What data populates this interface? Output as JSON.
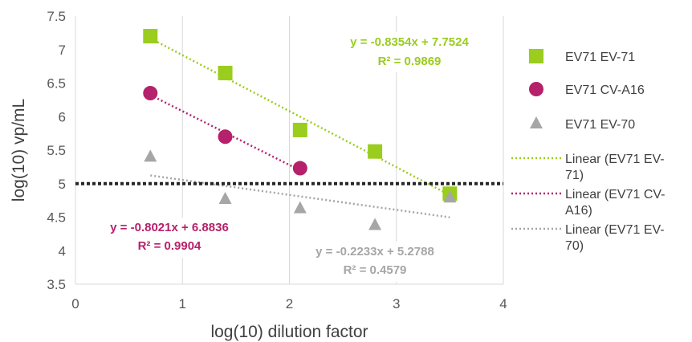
{
  "chart_data": {
    "type": "scatter",
    "title": "",
    "xlabel": "log(10) dilution factor",
    "ylabel": "log(10) vp/mL",
    "xlim": [
      0,
      4
    ],
    "ylim": [
      3.5,
      7.5
    ],
    "xticks": [
      "0",
      "1",
      "2",
      "3",
      "4"
    ],
    "yticks": [
      "3.5",
      "4",
      "4.5",
      "5",
      "5.5",
      "6",
      "6.5",
      "7",
      "7.5"
    ],
    "grid": "vertical",
    "legend_position": "right",
    "reference_line": {
      "y": 5,
      "style": "dotted",
      "color": "#262626"
    },
    "series": [
      {
        "name": "EV71 EV-71",
        "marker": "square",
        "color": "#9ACD1E",
        "x": [
          0.7,
          1.4,
          2.1,
          2.8,
          3.5
        ],
        "y": [
          7.2,
          6.65,
          5.8,
          5.48,
          4.85
        ],
        "trendline": {
          "slope": -0.8354,
          "intercept": 7.7524,
          "x_range": [
            0.7,
            3.5
          ],
          "legend_label": "Linear (EV71 EV-71)",
          "equation": "y = -0.8354x + 7.7524",
          "r2": "R² = 0.9869"
        }
      },
      {
        "name": "EV71 CV-A16",
        "marker": "circle",
        "color": "#B5216A",
        "x": [
          0.7,
          1.4,
          2.1
        ],
        "y": [
          6.35,
          5.7,
          5.23
        ],
        "trendline": {
          "slope": -0.8021,
          "intercept": 6.8836,
          "x_range": [
            0.7,
            2.1
          ],
          "legend_label": "Linear (EV71 CV-A16)",
          "equation": "y = -0.8021x + 6.8836",
          "r2": "R² = 0.9904"
        }
      },
      {
        "name": "EV71 EV-70",
        "marker": "triangle",
        "color": "#A6A6A6",
        "x": [
          0.7,
          1.4,
          2.1,
          2.8,
          3.5
        ],
        "y": [
          5.4,
          4.77,
          4.63,
          4.38,
          4.79
        ],
        "trendline": {
          "slope": -0.2233,
          "intercept": 5.2788,
          "x_range": [
            0.7,
            3.5
          ],
          "legend_label": "Linear (EV71 EV-70)",
          "equation": "y = -0.2233x + 5.2788",
          "r2": "R² = 0.4579"
        }
      }
    ]
  },
  "legend": {
    "items": [
      {
        "label": "EV71 EV-71",
        "marker": "square",
        "color": "#9ACD1E"
      },
      {
        "label": "EV71 CV-A16",
        "marker": "circle",
        "color": "#B5216A"
      },
      {
        "label": "EV71 EV-70",
        "marker": "triangle",
        "color": "#A6A6A6"
      },
      {
        "label_lines": [
          "Linear (EV71 EV-",
          "71)"
        ],
        "marker": "dotted-line",
        "color": "#9ACD1E"
      },
      {
        "label_lines": [
          "Linear (EV71 CV-",
          "A16)"
        ],
        "marker": "dotted-line",
        "color": "#B5216A"
      },
      {
        "label_lines": [
          "Linear (EV71 EV-",
          "70)"
        ],
        "marker": "dotted-line",
        "color": "#A6A6A6"
      }
    ]
  }
}
